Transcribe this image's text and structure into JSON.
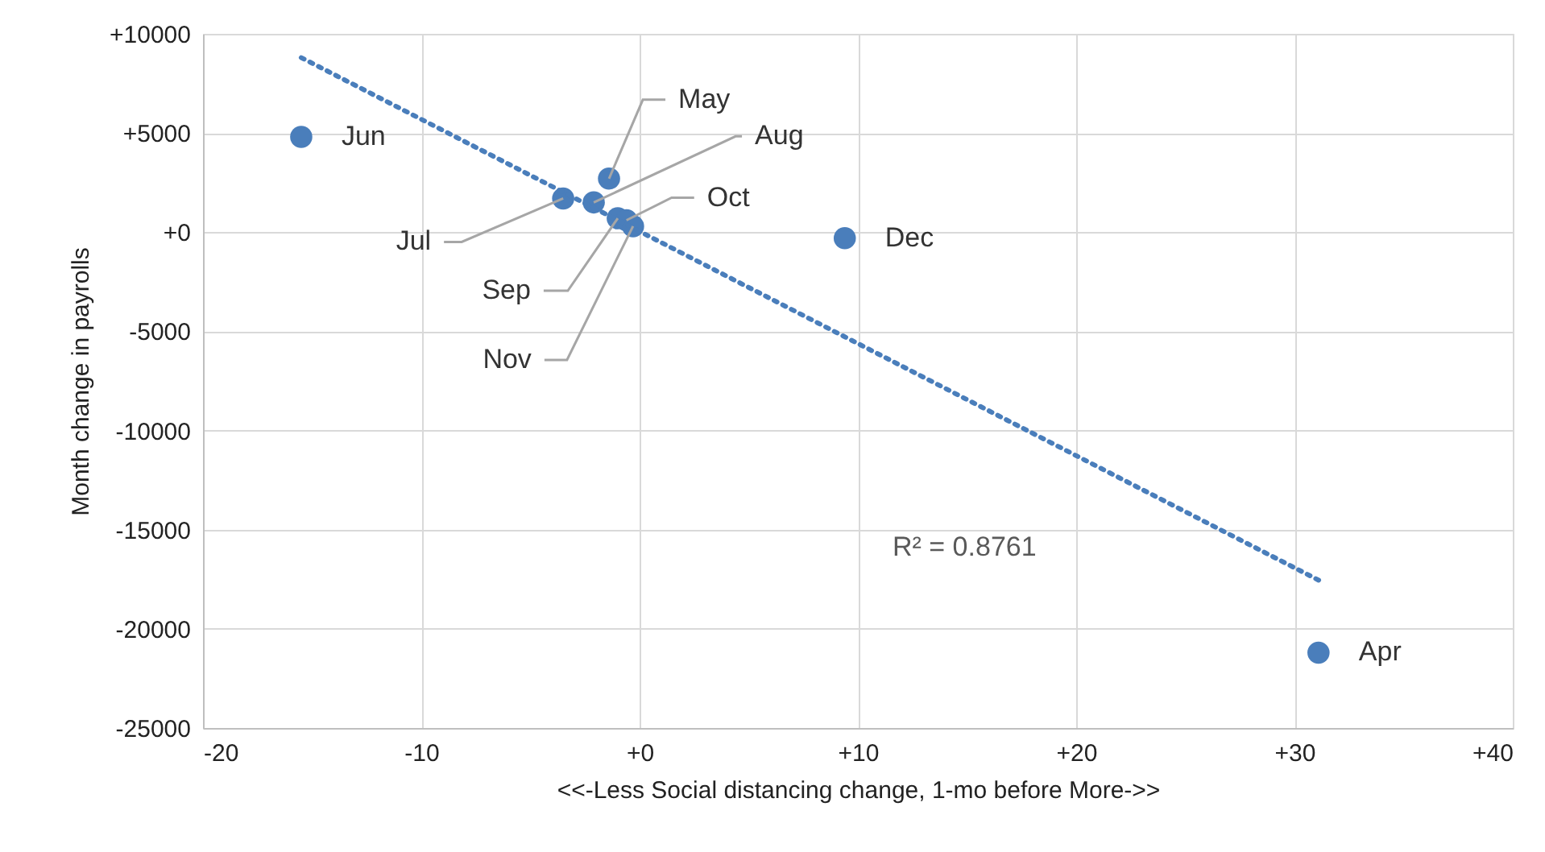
{
  "chart_data": {
    "type": "scatter",
    "xlabel": "<<-Less   Social distancing change, 1-mo before    More->>",
    "ylabel": "Month change in payrolls",
    "xlim": [
      -20,
      40
    ],
    "xticks": [
      -20,
      {
        "value": -10,
        "label": "-10"
      },
      {
        "value": 0,
        "label": "+0"
      },
      {
        "value": 10,
        "label": "+10"
      },
      {
        "value": 20,
        "label": "+20"
      },
      {
        "value": 30,
        "label": "+30"
      },
      {
        "value": 40,
        "label": "+40"
      }
    ],
    "ylim": [
      -25000,
      10000
    ],
    "yticks": [
      -25000,
      -20000,
      -15000,
      -10000,
      -5000,
      {
        "value": 0,
        "label": "+0"
      },
      {
        "value": 5000,
        "label": "+5000"
      },
      {
        "value": 10000,
        "label": "+10000"
      }
    ],
    "grid": true,
    "marker": "circle",
    "series": [
      {
        "color": "#4a7ebb",
        "x": [
          -15.5,
          -3.5,
          -2.1,
          -1.4,
          -1.0,
          -0.6,
          -0.3,
          9.4,
          31.1
        ],
        "values": [
          4800,
          1700,
          1500,
          2700,
          700,
          600,
          300,
          -300,
          -21200
        ]
      },
      {
        "type": "line",
        "color": "#4a7ebb",
        "line_style": "dotted",
        "marker": "none",
        "x": [
          -15.5,
          31.2
        ],
        "values": [
          8800,
          -17600
        ]
      }
    ],
    "annotations": [
      {
        "text": "Jun",
        "x": -15.5,
        "y": 4800
      },
      {
        "text": "Jul",
        "x": -3.5,
        "y": 1700
      },
      {
        "text": "Aug",
        "x": -2.1,
        "y": 1500
      },
      {
        "text": "May",
        "x": -1.4,
        "y": 2700
      },
      {
        "text": "Sep",
        "x": -1.0,
        "y": 700
      },
      {
        "text": "Oct",
        "x": -0.6,
        "y": 600
      },
      {
        "text": "Nov",
        "x": -0.3,
        "y": 300
      },
      {
        "text": "Dec",
        "x": 9.4,
        "y": -300
      },
      {
        "text": "Apr",
        "x": 31.1,
        "y": -21200
      },
      "R² = 0.8761"
    ]
  }
}
